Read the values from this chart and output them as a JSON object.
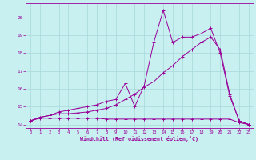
{
  "xlabel": "Windchill (Refroidissement éolien,°C)",
  "bg_color": "#c8f0f0",
  "line_color": "#990099",
  "grid_color": "#a8d8d8",
  "xlim": [
    -0.5,
    23.5
  ],
  "ylim": [
    13.8,
    20.8
  ],
  "xticks": [
    0,
    1,
    2,
    3,
    4,
    5,
    6,
    7,
    8,
    9,
    10,
    11,
    12,
    13,
    14,
    15,
    16,
    17,
    18,
    19,
    20,
    21,
    22,
    23
  ],
  "yticks": [
    14,
    15,
    16,
    17,
    18,
    19,
    20
  ],
  "line1_x": [
    0,
    1,
    2,
    3,
    4,
    5,
    6,
    7,
    8,
    9,
    10,
    11,
    12,
    13,
    14,
    15,
    16,
    17,
    18,
    19,
    20,
    21,
    22,
    23
  ],
  "line1_y": [
    14.2,
    14.35,
    14.35,
    14.35,
    14.35,
    14.35,
    14.35,
    14.35,
    14.3,
    14.3,
    14.3,
    14.3,
    14.3,
    14.3,
    14.3,
    14.3,
    14.3,
    14.3,
    14.3,
    14.3,
    14.3,
    14.3,
    14.1,
    14.0
  ],
  "line2_x": [
    0,
    1,
    2,
    3,
    4,
    5,
    6,
    7,
    8,
    9,
    10,
    11,
    12,
    13,
    14,
    15,
    16,
    17,
    18,
    19,
    20,
    21,
    22,
    23
  ],
  "line2_y": [
    14.2,
    14.4,
    14.5,
    14.6,
    14.6,
    14.65,
    14.7,
    14.8,
    14.9,
    15.1,
    15.4,
    15.7,
    16.1,
    16.4,
    16.9,
    17.3,
    17.8,
    18.2,
    18.6,
    18.9,
    18.2,
    15.7,
    14.2,
    14.0
  ],
  "line3_x": [
    0,
    1,
    2,
    3,
    4,
    5,
    6,
    7,
    8,
    9,
    10,
    11,
    12,
    13,
    14,
    15,
    16,
    17,
    18,
    19,
    20,
    21,
    22,
    23
  ],
  "line3_y": [
    14.2,
    14.4,
    14.5,
    14.7,
    14.8,
    14.9,
    15.0,
    15.1,
    15.3,
    15.4,
    16.3,
    15.0,
    16.2,
    18.6,
    20.4,
    18.6,
    18.9,
    18.9,
    19.1,
    19.4,
    18.0,
    15.6,
    14.2,
    14.0
  ]
}
